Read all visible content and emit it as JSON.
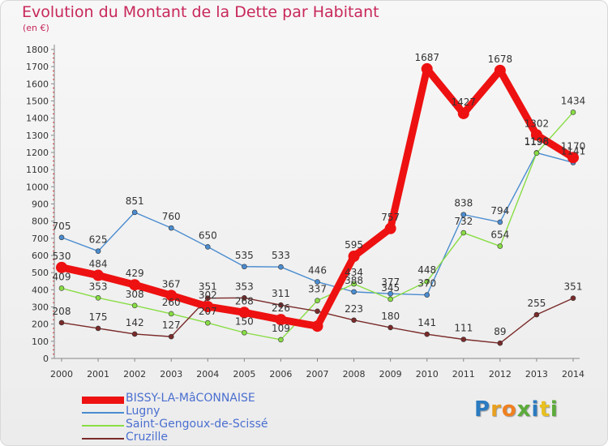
{
  "header": {
    "title": "Evolution du Montant de la Dette par Habitant",
    "unit": "(en €)"
  },
  "logo": {
    "text": "Proxiti",
    "colors": [
      "#2b7bc0",
      "#e8a020",
      "#f08020",
      "#5bab3a",
      "#2b7bc0",
      "#e8c020",
      "#5bab3a"
    ]
  },
  "chart_data": {
    "type": "line",
    "x": [
      "2000",
      "2001",
      "2002",
      "2003",
      "2004",
      "2005",
      "2006",
      "2007",
      "2008",
      "2009",
      "2010",
      "2011",
      "2012",
      "2013",
      "2014"
    ],
    "ylim": [
      0,
      1800
    ],
    "yticks": [
      0,
      100,
      200,
      300,
      400,
      500,
      600,
      700,
      800,
      900,
      1000,
      1100,
      1200,
      1300,
      1400,
      1500,
      1600,
      1700,
      1800
    ],
    "grid": false,
    "legend_position": "bottom-left",
    "series": [
      {
        "name": "BISSY-LA-MâCONNAISE",
        "color": "#ee1111",
        "values": [
          530,
          484,
          429,
          367,
          302,
          268,
          226,
          188,
          595,
          757,
          1687,
          1427,
          1678,
          1302,
          1170
        ],
        "labels": [
          "530",
          "484",
          "429",
          "367",
          "302",
          "268",
          "226",
          "",
          "595",
          "757",
          "1687",
          "1427",
          "1678",
          "1302",
          "1170"
        ]
      },
      {
        "name": "Lugny",
        "color": "#4a8cd0",
        "values": [
          705,
          625,
          851,
          760,
          650,
          535,
          533,
          446,
          388,
          377,
          370,
          838,
          794,
          1198,
          1141
        ],
        "labels": [
          "705",
          "625",
          "851",
          "760",
          "650",
          "535",
          "533",
          "446",
          "388",
          "377",
          "370",
          "838",
          "794",
          "1198",
          "1141"
        ]
      },
      {
        "name": "Saint-Gengoux-de-Scissé",
        "color": "#88dd44",
        "values": [
          409,
          353,
          308,
          260,
          207,
          150,
          109,
          337,
          434,
          345,
          448,
          732,
          654,
          1196,
          1434
        ],
        "labels": [
          "409",
          "353",
          "308",
          "260",
          "207",
          "150",
          "109",
          "337",
          "434",
          "345",
          "448",
          "732",
          "654",
          "1196",
          "1434"
        ]
      },
      {
        "name": "Cruzille",
        "color": "#7a2a2a",
        "values": [
          208,
          175,
          142,
          127,
          351,
          353,
          311,
          275,
          223,
          180,
          141,
          111,
          89,
          255,
          351
        ],
        "labels": [
          "208",
          "175",
          "142",
          "127",
          "351",
          "353",
          "311",
          "",
          "223",
          "180",
          "141",
          "111",
          "89",
          "255",
          "351"
        ]
      }
    ]
  }
}
